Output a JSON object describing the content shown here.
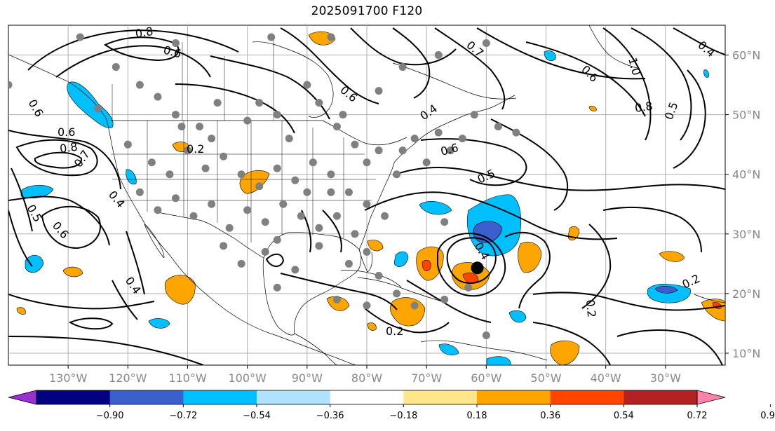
{
  "title": "2025091700 F120",
  "longitude_labels": [
    "130°W",
    "120°W",
    "110°W",
    "100°W",
    "90°W",
    "80°W",
    "70°W",
    "60°W",
    "50°W",
    "40°W",
    "30°W"
  ],
  "latitude_labels": [
    "60°N",
    "50°N",
    "40°N",
    "30°N",
    "20°N",
    "10°N"
  ],
  "contour_labels": [
    "0.8",
    "0.6",
    "0.6",
    "0.8",
    "0.7",
    "0.6",
    "0.5",
    "0.6",
    "0.4",
    "0.2",
    "0.4",
    "0.6",
    "0.5",
    "0.4",
    "0.4",
    "0.2",
    "0.2",
    "0.8",
    "0.5",
    "1.0",
    "0.4",
    "0.6",
    "0.7",
    "0.6",
    "0.2"
  ],
  "colorbar": {
    "ticks": [
      "−0.90",
      "−0.72",
      "−0.54",
      "−0.36",
      "−0.18",
      "0.18",
      "0.36",
      "0.54",
      "0.72",
      "0.90"
    ],
    "colors": [
      "#9b30d0",
      "#000080",
      "#3a5fcd",
      "#00bfff",
      "#b0e2ff",
      "#ffffff",
      "#ffe68a",
      "#ffa500",
      "#ff4500",
      "#b22222",
      "#ff82ab"
    ]
  },
  "storm_marker": {
    "lon": -61.5,
    "lat": 24.3
  },
  "stations": [
    [
      -140,
      55
    ],
    [
      -125,
      51
    ],
    [
      -122,
      58
    ],
    [
      -118,
      55
    ],
    [
      -115,
      53
    ],
    [
      -112,
      50
    ],
    [
      -108,
      48
    ],
    [
      -105,
      52
    ],
    [
      -100,
      49
    ],
    [
      -98,
      52
    ],
    [
      -95,
      50
    ],
    [
      -93,
      46
    ],
    [
      -90,
      55
    ],
    [
      -88,
      52
    ],
    [
      -85,
      48
    ],
    [
      -82,
      45
    ],
    [
      -80,
      42
    ],
    [
      -78,
      44
    ],
    [
      -75,
      40
    ],
    [
      -72,
      46
    ],
    [
      -70,
      42
    ],
    [
      -68,
      47
    ],
    [
      -66,
      44
    ],
    [
      -64,
      46
    ],
    [
      -62,
      50
    ],
    [
      -58,
      48
    ],
    [
      -55,
      47
    ],
    [
      -120,
      45
    ],
    [
      -116,
      42
    ],
    [
      -113,
      40
    ],
    [
      -110,
      44
    ],
    [
      -107,
      41
    ],
    [
      -104,
      43
    ],
    [
      -101,
      40
    ],
    [
      -98,
      38
    ],
    [
      -95,
      41
    ],
    [
      -92,
      39
    ],
    [
      -89,
      42
    ],
    [
      -86,
      40
    ],
    [
      -83,
      37
    ],
    [
      -80,
      35
    ],
    [
      -77,
      33
    ],
    [
      -118,
      37
    ],
    [
      -115,
      34
    ],
    [
      -112,
      36
    ],
    [
      -109,
      33
    ],
    [
      -106,
      35
    ],
    [
      -103,
      31
    ],
    [
      -100,
      34
    ],
    [
      -97,
      32
    ],
    [
      -94,
      35
    ],
    [
      -91,
      33
    ],
    [
      -88,
      31
    ],
    [
      -85,
      33
    ],
    [
      -82,
      30
    ],
    [
      -80,
      27
    ],
    [
      -97,
      27
    ],
    [
      -95,
      29
    ],
    [
      -101,
      25
    ],
    [
      -88,
      28
    ],
    [
      -83,
      25
    ],
    [
      -78,
      23
    ],
    [
      -75,
      20
    ],
    [
      -72,
      18
    ],
    [
      -85,
      19
    ],
    [
      -80,
      18
    ],
    [
      -67,
      19
    ],
    [
      -63,
      21
    ],
    [
      -67,
      32
    ],
    [
      -74,
      44
    ],
    [
      -128,
      63
    ],
    [
      -112,
      62
    ],
    [
      -96,
      63
    ],
    [
      -86,
      63
    ],
    [
      -74,
      58
    ],
    [
      -68,
      60
    ],
    [
      -60,
      62
    ],
    [
      -78,
      54
    ],
    [
      -84,
      50
    ],
    [
      -106,
      46
    ],
    [
      -111,
      48
    ],
    [
      -90,
      37
    ],
    [
      -86,
      37
    ],
    [
      -104,
      28
    ],
    [
      -95,
      21
    ],
    [
      -92,
      24
    ],
    [
      -60,
      13
    ]
  ]
}
